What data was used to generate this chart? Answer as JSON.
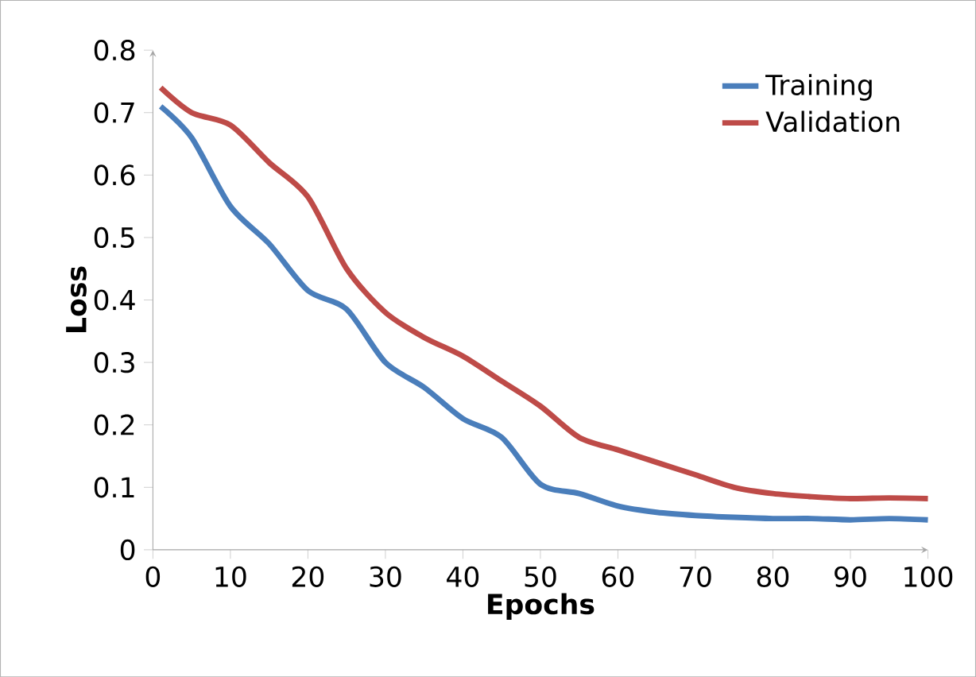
{
  "chart_data": {
    "type": "line",
    "xlabel": "Epochs",
    "ylabel": "Loss",
    "x": [
      1,
      5,
      10,
      15,
      20,
      25,
      30,
      35,
      40,
      45,
      50,
      55,
      60,
      65,
      70,
      75,
      80,
      85,
      90,
      95,
      100
    ],
    "series": [
      {
        "name": "Training",
        "color": "#4a7ebb",
        "values": [
          0.71,
          0.66,
          0.55,
          0.49,
          0.415,
          0.385,
          0.3,
          0.26,
          0.21,
          0.18,
          0.105,
          0.09,
          0.07,
          0.06,
          0.055,
          0.052,
          0.05,
          0.05,
          0.048,
          0.05,
          0.048
        ]
      },
      {
        "name": "Validation",
        "color": "#be4b48",
        "values": [
          0.74,
          0.7,
          0.68,
          0.62,
          0.565,
          0.45,
          0.38,
          0.34,
          0.31,
          0.27,
          0.23,
          0.18,
          0.16,
          0.14,
          0.12,
          0.1,
          0.09,
          0.085,
          0.082,
          0.083,
          0.082
        ]
      }
    ],
    "xlim": [
      0,
      100
    ],
    "ylim": [
      0,
      0.8
    ],
    "xticks": [
      0,
      10,
      20,
      30,
      40,
      50,
      60,
      70,
      80,
      90,
      100
    ],
    "yticks": [
      0,
      0.1,
      0.2,
      0.3,
      0.4,
      0.5,
      0.6,
      0.7,
      0.8
    ],
    "legend": "top right",
    "grid": false,
    "marker": "none",
    "line_style": "solid"
  }
}
